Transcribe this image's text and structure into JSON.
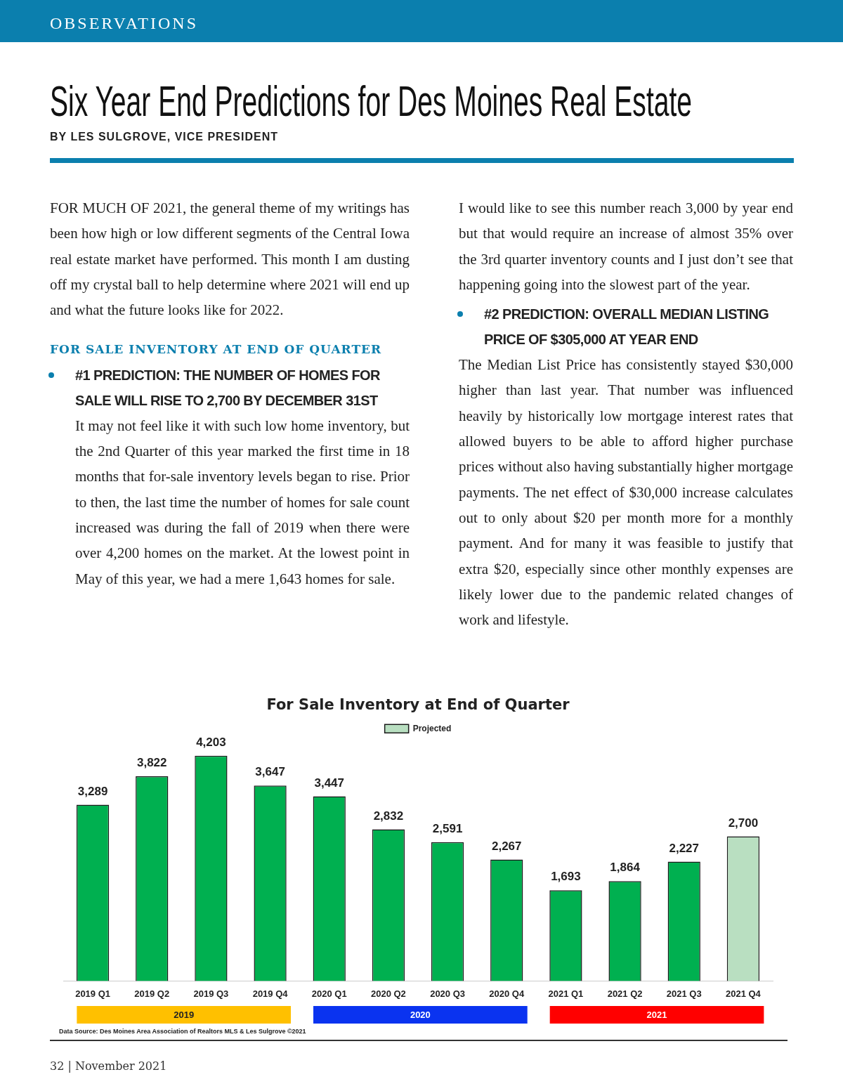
{
  "chart_data": {
    "type": "bar",
    "title": "For Sale Inventory at End of Quarter",
    "categories": [
      "2019 Q1",
      "2019 Q2",
      "2019 Q3",
      "2019 Q4",
      "2020 Q1",
      "2020 Q2",
      "2020 Q3",
      "2020 Q4",
      "2021 Q1",
      "2021 Q2",
      "2021 Q3",
      "2021 Q4"
    ],
    "series": [
      {
        "color": "#00b050",
        "values": [
          3289,
          3822,
          4203,
          3647,
          3447,
          2832,
          2591,
          2267,
          1693,
          1864,
          2227,
          null
        ],
        "value_labels": [
          "3,289",
          "3,822",
          "4,203",
          "3,647",
          "3,447",
          "2,832",
          "2,591",
          "2,267",
          "1,693",
          "1,864",
          "2,227",
          null
        ]
      },
      {
        "name": "Projected",
        "color": "#b9dfc1",
        "values": [
          null,
          null,
          null,
          null,
          null,
          null,
          null,
          null,
          null,
          null,
          null,
          2700
        ],
        "value_labels": [
          null,
          null,
          null,
          null,
          null,
          null,
          null,
          null,
          null,
          null,
          null,
          "2,700"
        ]
      }
    ],
    "stacked": true,
    "legend": "top",
    "grid": false,
    "tick_labels": "x",
    "annotations": [
      "OBSERVATIONS",
      "Six Year End Predictions for Des Moines Real Estate",
      "BY LES SULGROVE, VICE PRESIDENT",
      "FOR MUCH OF 2021, the general theme of my writings has been how high or low different segments of the Central Iowa real estate market have performed. This month I am dusting off my crystal ball to help determine where 2021 will end up and what the future looks like for 2022.",
      "FOR SALE INVENTORY AT END OF QUARTER",
      "#1 PREDICTION: THE NUMBER OF HOMES FOR SALE WILL RISE TO 2,700 BY DECEMBER 31ST",
      "It may not feel like it with such low home inventory, but the 2nd Quarter of this year marked the first time in 18 months that for-sale inventory levels began to rise. Prior to then, the last time the number of homes for sale count increased was during the fall of 2019 when there were over 4,200 homes on the market. At the lowest point in May of this year, we had a mere 1,643 homes for sale.",
      "I would like to see this number reach 3,000 by year end but that would require an increase of almost 35% over the 3rd quarter inventory counts and I just don’t see that happening going into the slowest part of the year.",
      "#2 PREDICTION: OVERALL MEDIAN LISTING PRICE OF $305,000 AT YEAR END",
      "The Median List Price has consistently stayed $30,000 higher than last year. That number was influenced heavily by historically low mortgage interest rates that allowed buyers to be able to afford higher purchase prices without also having substantially higher mortgage payments. The net effect of $30,000 increase calculates out to only about $20 per month more for a monthly payment. And for many it was feasible to justify that extra $20, especially since other monthly expenses are likely lower due to the pandemic related changes of work and lifestyle.",
      "2019",
      "2020",
      "2021",
      "Data Source: Des Moines Area Association of Realtors MLS & Les Sulgrove ©2021",
      "32 | November 2021"
    ]
  }
}
